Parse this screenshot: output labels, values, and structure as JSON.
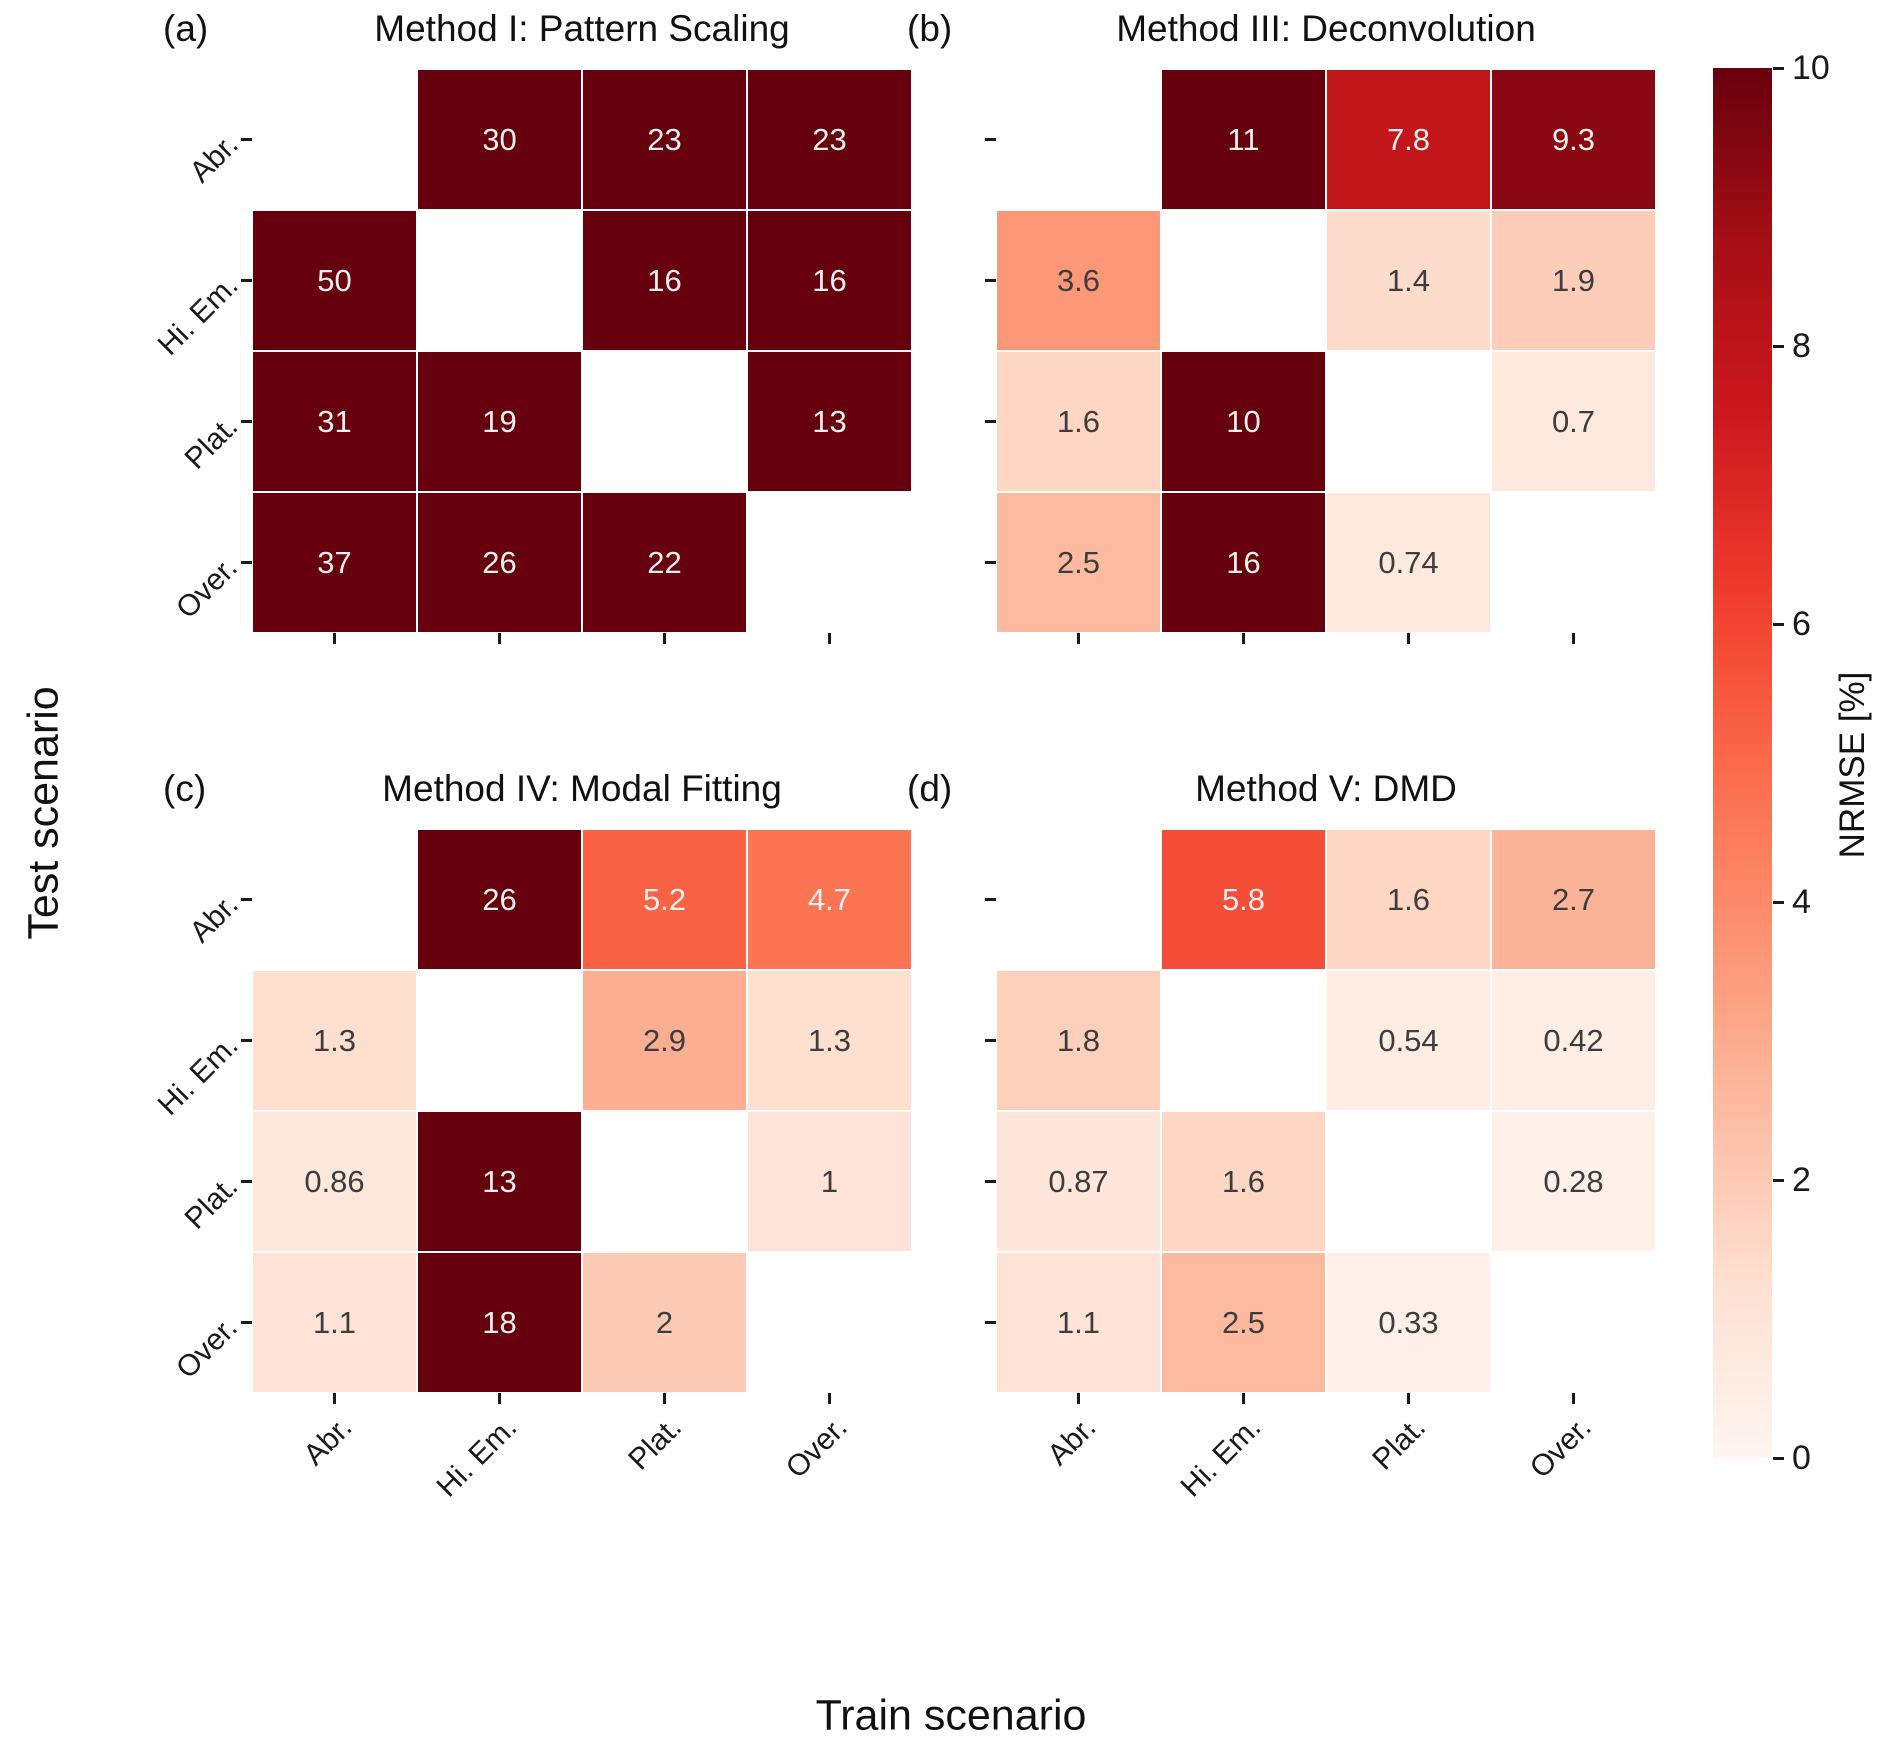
{
  "figure": {
    "xlabel": "Train scenario",
    "ylabel": "Test scenario"
  },
  "chart_data": {
    "type": "heatmap",
    "xlabel": "Train scenario",
    "ylabel": "Test scenario",
    "x_categories": [
      "Abr.",
      "Hi. Em.",
      "Plat.",
      "Over."
    ],
    "y_categories": [
      "Abr.",
      "Hi. Em.",
      "Plat.",
      "Over."
    ],
    "vmin": 0,
    "vmax": 10,
    "colormap_name": "Reds",
    "colormap_stops": [
      "#fff5f0",
      "#fee0d2",
      "#fcbba1",
      "#fc9272",
      "#fb6a4a",
      "#ef3b2c",
      "#cb181d",
      "#a50f15",
      "#67000d"
    ],
    "colorbar": {
      "label": "NRMSE [%]",
      "ticks": [
        10,
        8,
        6,
        4,
        2,
        0
      ]
    },
    "panels": [
      {
        "tag": "(a)",
        "title": "Method I: Pattern Scaling",
        "values": [
          [
            null,
            30,
            23,
            23
          ],
          [
            50,
            null,
            16,
            16
          ],
          [
            31,
            19,
            null,
            13
          ],
          [
            37,
            26,
            22,
            null
          ]
        ]
      },
      {
        "tag": "(b)",
        "title": "Method III: Deconvolution",
        "values": [
          [
            null,
            11,
            7.8,
            9.3
          ],
          [
            3.6,
            null,
            1.4,
            1.9
          ],
          [
            1.6,
            10,
            null,
            0.7
          ],
          [
            2.5,
            16,
            0.74,
            null
          ]
        ]
      },
      {
        "tag": "(c)",
        "title": "Method IV: Modal Fitting",
        "values": [
          [
            null,
            26,
            5.2,
            4.7
          ],
          [
            1.3,
            null,
            2.9,
            1.3
          ],
          [
            0.86,
            13,
            null,
            1
          ],
          [
            1.1,
            18,
            2,
            null
          ]
        ]
      },
      {
        "tag": "(d)",
        "title": "Method V: DMD",
        "values": [
          [
            null,
            5.8,
            1.6,
            2.7
          ],
          [
            1.8,
            null,
            0.54,
            0.42
          ],
          [
            0.87,
            1.6,
            null,
            0.28
          ],
          [
            1.1,
            2.5,
            0.33,
            null
          ]
        ]
      }
    ]
  }
}
